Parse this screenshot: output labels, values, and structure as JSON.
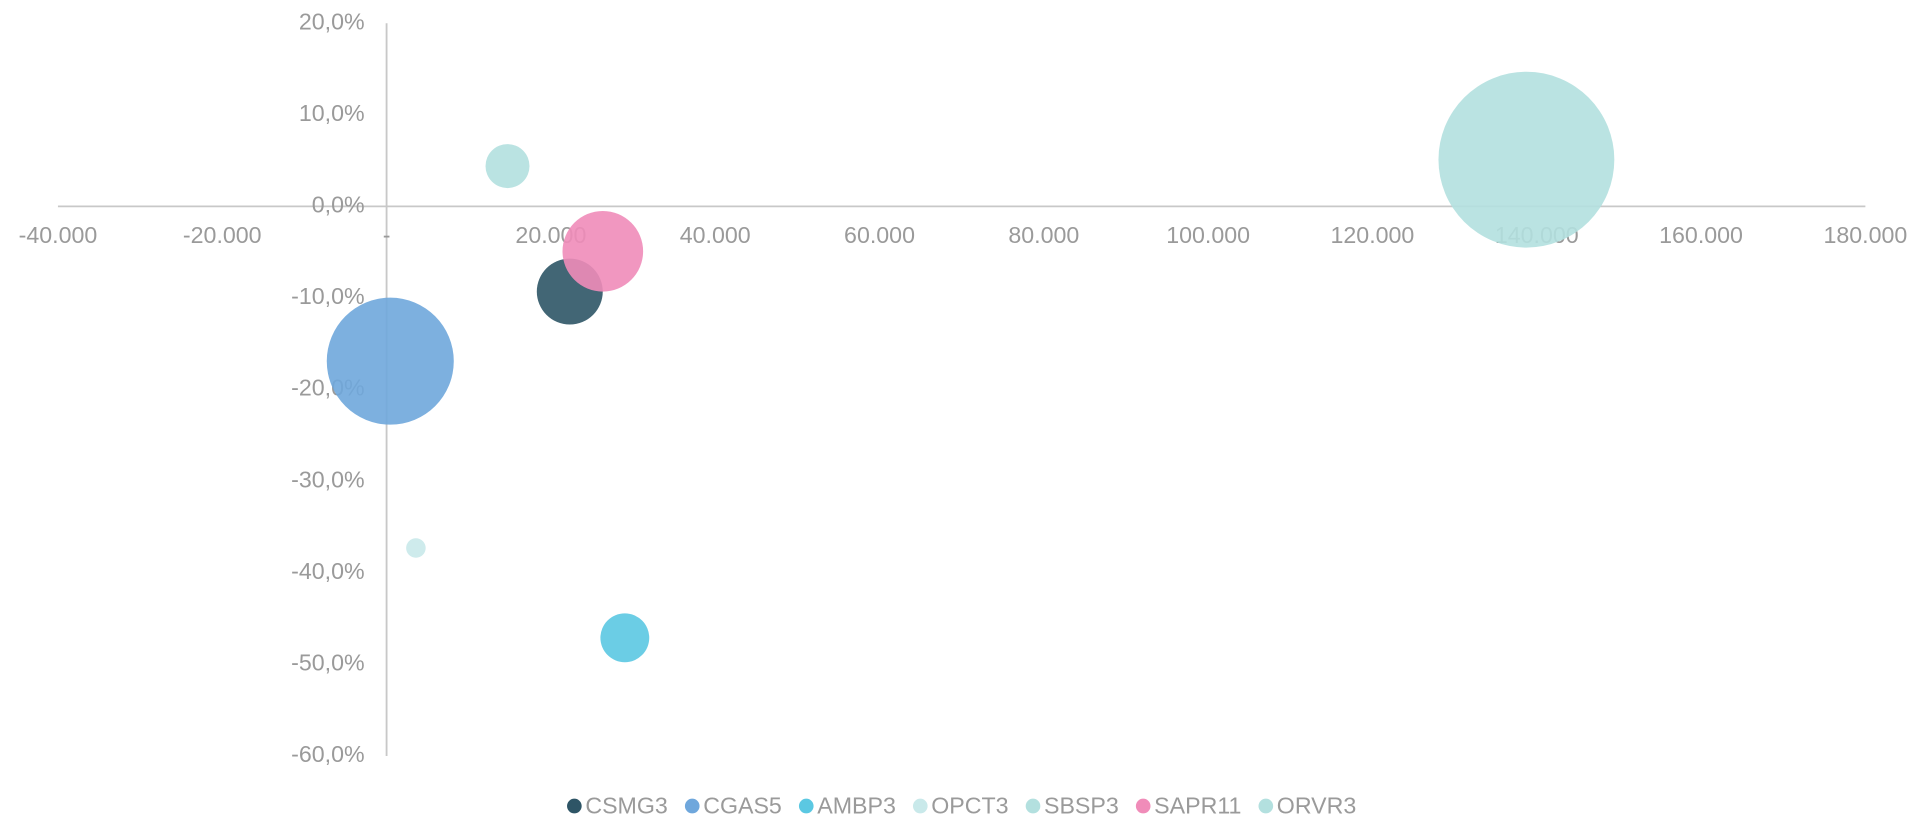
{
  "chart_data": {
    "type": "bubble",
    "xlim": [
      -40000,
      180000
    ],
    "xticks": [
      {
        "value": -40000,
        "label": "-40.000"
      },
      {
        "value": -20000,
        "label": "-20.000"
      },
      {
        "value": 0,
        "label": "-"
      },
      {
        "value": 20000,
        "label": "20.000"
      },
      {
        "value": 40000,
        "label": "40.000"
      },
      {
        "value": 60000,
        "label": "60.000"
      },
      {
        "value": 80000,
        "label": "80.000"
      },
      {
        "value": 100000,
        "label": "100.000"
      },
      {
        "value": 120000,
        "label": "120.000"
      },
      {
        "value": 140000,
        "label": "140.000"
      },
      {
        "value": 160000,
        "label": "160.000"
      },
      {
        "value": 180000,
        "label": "180.000"
      }
    ],
    "ylim": [
      -60,
      20
    ],
    "yticks": [
      {
        "value": 20,
        "label": "20,0%"
      },
      {
        "value": 10,
        "label": "10,0%"
      },
      {
        "value": 0,
        "label": "0,0%"
      },
      {
        "value": -10,
        "label": "-10,0%"
      },
      {
        "value": -20,
        "label": "-20,0%"
      },
      {
        "value": -30,
        "label": "-30,0%"
      },
      {
        "value": -40,
        "label": "-40,0%"
      },
      {
        "value": -50,
        "label": "-50,0%"
      },
      {
        "value": -60,
        "label": "-60,0%"
      }
    ],
    "grid": false,
    "legend": "bottom",
    "series": [
      {
        "name": "CSMG3",
        "color": "#2e5566",
        "x": [
          22300
        ],
        "values": [
          -9.3
        ],
        "sizes": [
          729
        ]
      },
      {
        "name": "CGAS5",
        "color": "#6fa7dc",
        "x": [
          450
        ],
        "values": [
          -16.9
        ],
        "sizes": [
          2704
        ]
      },
      {
        "name": "AMBP3",
        "color": "#5bc8e2",
        "x": [
          29000
        ],
        "values": [
          -47.1
        ],
        "sizes": [
          400
        ]
      },
      {
        "name": "OPCT3",
        "color": "#c9e9ea",
        "x": [
          3570
        ],
        "values": [
          -37.3
        ],
        "sizes": [
          64
        ]
      },
      {
        "name": "SBSP3",
        "color": "#b3e0df",
        "x": [
          138740
        ],
        "values": [
          5.1
        ],
        "sizes": [
          5184
        ]
      },
      {
        "name": "SAPR11",
        "color": "#f08cb9",
        "x": [
          26320
        ],
        "values": [
          -4.9
        ],
        "sizes": [
          1089
        ]
      },
      {
        "name": "ORVR3",
        "color": "#b3e0df",
        "x": [
          14720
        ],
        "values": [
          4.4
        ],
        "sizes": [
          324
        ]
      }
    ]
  }
}
